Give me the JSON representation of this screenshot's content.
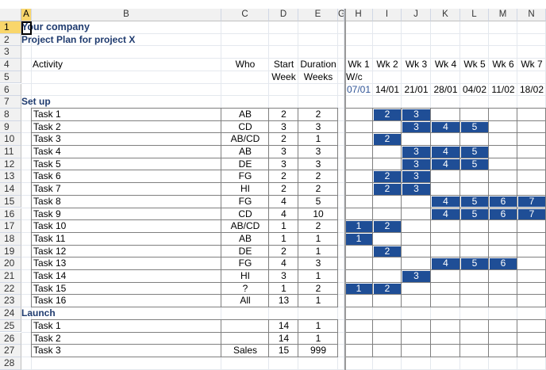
{
  "columns": [
    "A",
    "B",
    "C",
    "D",
    "E",
    "G",
    "H",
    "I",
    "J",
    "K",
    "L",
    "M",
    "N"
  ],
  "rows": [
    "1",
    "2",
    "3",
    "4",
    "5",
    "6",
    "7",
    "8",
    "9",
    "10",
    "11",
    "12",
    "13",
    "14",
    "15",
    "16",
    "17",
    "18",
    "19",
    "20",
    "21",
    "22",
    "23",
    "24",
    "25",
    "26",
    "27",
    "28"
  ],
  "title": "Your company",
  "subtitle": "Project Plan for project X",
  "headers": {
    "activity": "Activity",
    "who": "Who",
    "start_top": "Start",
    "start_bottom": "Week",
    "duration_top": "Duration",
    "duration_bottom": "Weeks",
    "wc": "W/c"
  },
  "weeks": [
    "Wk 1",
    "Wk 2",
    "Wk 3",
    "Wk 4",
    "Wk 5",
    "Wk 6",
    "Wk 7"
  ],
  "dates": [
    "07/01",
    "14/01",
    "21/01",
    "28/01",
    "04/02",
    "11/02",
    "18/02"
  ],
  "sections": {
    "setup": "Set up",
    "launch": "Launch"
  },
  "tasks": [
    {
      "name": "Task 1",
      "who": "AB",
      "start": "2",
      "duration": "2"
    },
    {
      "name": "Task 2",
      "who": "CD",
      "start": "3",
      "duration": "3"
    },
    {
      "name": "Task 3",
      "who": "AB/CD",
      "start": "2",
      "duration": "1"
    },
    {
      "name": "Task 4",
      "who": "AB",
      "start": "3",
      "duration": "3"
    },
    {
      "name": "Task 5",
      "who": "DE",
      "start": "3",
      "duration": "3"
    },
    {
      "name": "Task 6",
      "who": "FG",
      "start": "2",
      "duration": "2"
    },
    {
      "name": "Task 7",
      "who": "HI",
      "start": "2",
      "duration": "2"
    },
    {
      "name": "Task 8",
      "who": "FG",
      "start": "4",
      "duration": "5"
    },
    {
      "name": "Task 9",
      "who": "CD",
      "start": "4",
      "duration": "10"
    },
    {
      "name": "Task 10",
      "who": "AB/CD",
      "start": "1",
      "duration": "2"
    },
    {
      "name": "Task 11",
      "who": "AB",
      "start": "1",
      "duration": "1"
    },
    {
      "name": "Task 12",
      "who": "DE",
      "start": "2",
      "duration": "1"
    },
    {
      "name": "Task 13",
      "who": "FG",
      "start": "4",
      "duration": "3"
    },
    {
      "name": "Task 14",
      "who": "HI",
      "start": "3",
      "duration": "1"
    },
    {
      "name": "Task 15",
      "who": "?",
      "start": "1",
      "duration": "2"
    },
    {
      "name": "Task 16",
      "who": "All",
      "start": "13",
      "duration": "1"
    }
  ],
  "launch_tasks": [
    {
      "name": "Task 1",
      "who": "",
      "start": "14",
      "duration": "1"
    },
    {
      "name": "Task 2",
      "who": "",
      "start": "14",
      "duration": "1"
    },
    {
      "name": "Task 3",
      "who": "Sales",
      "start": "15",
      "duration": "999"
    }
  ],
  "colors": {
    "bar_fill": "#1f4e96",
    "title_text": "#1f3b6f",
    "date_text": "#2f5496",
    "selected_header": "#f9d66b"
  }
}
